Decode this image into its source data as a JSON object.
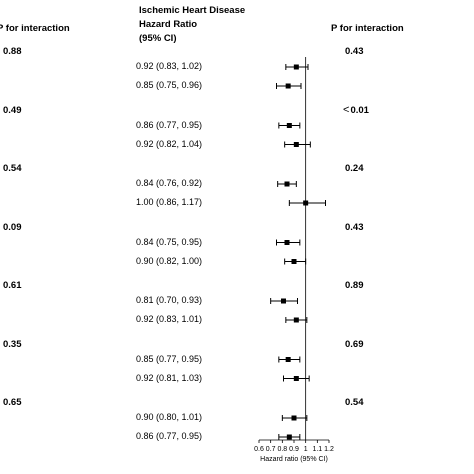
{
  "header": {
    "title": "Ischemic Heart Disease",
    "hr_label": "Hazard Ratio",
    "ci_label": "(95% CI)",
    "p_left_label": "P for interaction",
    "p_right_label": "P for interaction"
  },
  "chart_data": {
    "type": "forest",
    "xlabel": "Hazard ratio (95% CI)",
    "xlim": [
      0.6,
      1.2
    ],
    "xticks": [
      "0.6",
      "0.7",
      "0.8",
      "0.9",
      "1",
      "1.1",
      "1.2"
    ],
    "reference_line": 1.0,
    "groups": [
      {
        "p_left": "0.88",
        "p_right": "0.43",
        "rows": [
          {
            "label": "0.92 (0.83, 1.02)",
            "hr": 0.92,
            "lo": 0.83,
            "hi": 1.02
          },
          {
            "label": "0.85 (0.75, 0.96)",
            "hr": 0.85,
            "lo": 0.75,
            "hi": 0.96
          }
        ]
      },
      {
        "p_left": "0.49",
        "p_right": "0.01",
        "p_right_prefix": "<",
        "rows": [
          {
            "label": "0.86 (0.77, 0.95)",
            "hr": 0.86,
            "lo": 0.77,
            "hi": 0.95
          },
          {
            "label": "0.92 (0.82, 1.04)",
            "hr": 0.92,
            "lo": 0.82,
            "hi": 1.04
          }
        ]
      },
      {
        "p_left": "0.54",
        "p_right": "0.24",
        "rows": [
          {
            "label": "0.84 (0.76, 0.92)",
            "hr": 0.84,
            "lo": 0.76,
            "hi": 0.92
          },
          {
            "label": "1.00 (0.86, 1.17)",
            "hr": 1.0,
            "lo": 0.86,
            "hi": 1.17
          }
        ]
      },
      {
        "p_left": "0.09",
        "p_right": "0.43",
        "rows": [
          {
            "label": "0.84 (0.75, 0.95)",
            "hr": 0.84,
            "lo": 0.75,
            "hi": 0.95
          },
          {
            "label": "0.90 (0.82, 1.00)",
            "hr": 0.9,
            "lo": 0.82,
            "hi": 1.0
          }
        ]
      },
      {
        "p_left": "0.61",
        "p_right": "0.89",
        "rows": [
          {
            "label": "0.81 (0.70, 0.93)",
            "hr": 0.81,
            "lo": 0.7,
            "hi": 0.93
          },
          {
            "label": "0.92 (0.83, 1.01)",
            "hr": 0.92,
            "lo": 0.83,
            "hi": 1.01
          }
        ]
      },
      {
        "p_left": "0.35",
        "p_right": "0.69",
        "rows": [
          {
            "label": "0.85 (0.77, 0.95)",
            "hr": 0.85,
            "lo": 0.77,
            "hi": 0.95
          },
          {
            "label": "0.92 (0.81, 1.03)",
            "hr": 0.92,
            "lo": 0.81,
            "hi": 1.03
          }
        ]
      },
      {
        "p_left": "0.65",
        "p_right": "0.54",
        "rows": [
          {
            "label": "0.90 (0.80, 1.01)",
            "hr": 0.9,
            "lo": 0.8,
            "hi": 1.01
          },
          {
            "label": "0.86 (0.77, 0.95)",
            "hr": 0.86,
            "lo": 0.77,
            "hi": 0.95
          }
        ]
      }
    ]
  }
}
